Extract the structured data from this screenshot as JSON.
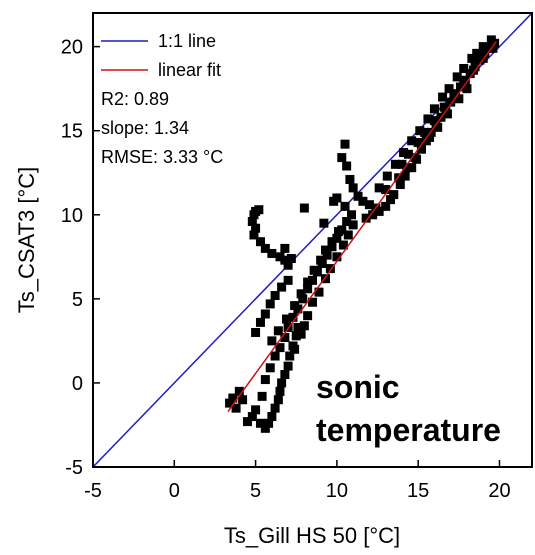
{
  "chart_data": {
    "type": "scatter",
    "xlabel": "Ts_Gill HS 50 [°C]",
    "ylabel": "Ts_CSAT3 [°C]",
    "xlim": [
      -5,
      22
    ],
    "ylim": [
      -5,
      22
    ],
    "xticks": [
      -5,
      0,
      5,
      10,
      15,
      20
    ],
    "yticks": [
      -5,
      0,
      5,
      10,
      15,
      20
    ],
    "legend_placement": "top-left",
    "legend": [
      {
        "label": "1:1 line",
        "color": "#1f1fbf"
      },
      {
        "label": "linear fit",
        "color": "#d01010"
      }
    ],
    "stats": [
      "R2: 0.89",
      "slope: 1.34",
      "RMSE: 3.33 °C"
    ],
    "annotation": [
      "sonic",
      "temperature"
    ],
    "lines": {
      "one_to_one": {
        "x": [
          -5,
          22
        ],
        "y": [
          -5,
          22
        ],
        "color": "#1f1fbf"
      },
      "linear_fit": {
        "x": [
          3.3,
          19.8
        ],
        "y": [
          -1.7,
          20.3
        ],
        "color": "#d01010"
      }
    },
    "marker_color": "#000000",
    "points": [
      [
        4.9,
        10.0
      ],
      [
        5.0,
        10.2
      ],
      [
        5.2,
        10.3
      ],
      [
        4.8,
        9.6
      ],
      [
        5.0,
        9.2
      ],
      [
        4.9,
        8.8
      ],
      [
        5.3,
        8.4
      ],
      [
        5.6,
        8.0
      ],
      [
        6.0,
        7.7
      ],
      [
        6.5,
        7.5
      ],
      [
        6.8,
        7.3
      ],
      [
        7.0,
        7.0
      ],
      [
        7.2,
        7.4
      ],
      [
        6.8,
        8.0
      ],
      [
        3.4,
        -1.2
      ],
      [
        3.6,
        -0.9
      ],
      [
        4.0,
        -0.5
      ],
      [
        3.8,
        -1.5
      ],
      [
        4.2,
        -1.0
      ],
      [
        4.5,
        -2.3
      ],
      [
        4.8,
        -2.0
      ],
      [
        5.0,
        -1.6
      ],
      [
        5.3,
        -2.4
      ],
      [
        5.6,
        -2.7
      ],
      [
        5.8,
        -2.4
      ],
      [
        6.0,
        -2.0
      ],
      [
        6.2,
        -1.5
      ],
      [
        6.4,
        -1.0
      ],
      [
        6.5,
        -0.5
      ],
      [
        6.6,
        0.0
      ],
      [
        6.8,
        0.5
      ],
      [
        7.0,
        1.0
      ],
      [
        7.1,
        1.6
      ],
      [
        7.3,
        2.2
      ],
      [
        7.5,
        2.8
      ],
      [
        7.6,
        3.3
      ],
      [
        5.4,
        -0.8
      ],
      [
        5.6,
        0.2
      ],
      [
        5.9,
        0.9
      ],
      [
        6.2,
        1.6
      ],
      [
        6.5,
        2.1
      ],
      [
        6.8,
        2.7
      ],
      [
        7.0,
        3.3
      ],
      [
        7.3,
        3.9
      ],
      [
        7.6,
        4.4
      ],
      [
        7.9,
        5.0
      ],
      [
        8.2,
        5.6
      ],
      [
        8.5,
        6.1
      ],
      [
        8.8,
        6.6
      ],
      [
        9.1,
        7.1
      ],
      [
        9.4,
        7.6
      ],
      [
        9.7,
        8.1
      ],
      [
        10.0,
        8.6
      ],
      [
        10.3,
        9.1
      ],
      [
        10.6,
        9.6
      ],
      [
        10.9,
        10.0
      ],
      [
        5.0,
        3.0
      ],
      [
        5.3,
        3.6
      ],
      [
        5.6,
        4.1
      ],
      [
        5.9,
        4.7
      ],
      [
        6.2,
        5.2
      ],
      [
        6.6,
        5.7
      ],
      [
        7.0,
        6.1
      ],
      [
        6.0,
        2.5
      ],
      [
        6.4,
        3.1
      ],
      [
        6.9,
        3.8
      ],
      [
        7.4,
        4.6
      ],
      [
        7.8,
        5.3
      ],
      [
        8.2,
        6.0
      ],
      [
        8.6,
        6.7
      ],
      [
        9.0,
        7.3
      ],
      [
        9.3,
        7.9
      ],
      [
        9.7,
        8.4
      ],
      [
        10.1,
        9.0
      ],
      [
        8.2,
        4.0
      ],
      [
        8.5,
        4.8
      ],
      [
        8.9,
        5.4
      ],
      [
        9.3,
        6.2
      ],
      [
        9.6,
        6.8
      ],
      [
        10.0,
        7.5
      ],
      [
        10.4,
        8.2
      ],
      [
        10.7,
        8.8
      ],
      [
        11.0,
        9.4
      ],
      [
        7.4,
        2.0
      ],
      [
        7.8,
        2.9
      ],
      [
        8.0,
        3.4
      ],
      [
        10.5,
        14.2
      ],
      [
        10.3,
        13.4
      ],
      [
        10.6,
        12.9
      ],
      [
        10.8,
        12.1
      ],
      [
        11.0,
        11.6
      ],
      [
        11.3,
        11.1
      ],
      [
        11.6,
        10.8
      ],
      [
        12.0,
        10.6
      ],
      [
        12.4,
        10.4
      ],
      [
        11.8,
        9.8
      ],
      [
        12.2,
        10.0
      ],
      [
        12.6,
        10.2
      ],
      [
        13.0,
        10.5
      ],
      [
        13.3,
        10.9
      ],
      [
        13.0,
        11.5
      ],
      [
        10.5,
        10.5
      ],
      [
        10.0,
        11.0
      ],
      [
        9.8,
        10.8
      ],
      [
        8.0,
        10.4
      ],
      [
        9.2,
        9.5
      ],
      [
        13.5,
        11.2
      ],
      [
        13.9,
        11.8
      ],
      [
        14.2,
        12.3
      ],
      [
        14.6,
        12.8
      ],
      [
        14.9,
        13.3
      ],
      [
        15.2,
        13.9
      ],
      [
        15.5,
        14.4
      ],
      [
        15.8,
        14.9
      ],
      [
        16.1,
        15.3
      ],
      [
        16.4,
        15.8
      ],
      [
        16.7,
        16.2
      ],
      [
        17.0,
        16.7
      ],
      [
        17.3,
        17.1
      ],
      [
        17.6,
        17.6
      ],
      [
        17.9,
        18.0
      ],
      [
        18.2,
        18.4
      ],
      [
        18.5,
        18.8
      ],
      [
        18.8,
        19.2
      ],
      [
        19.1,
        19.6
      ],
      [
        19.4,
        19.9
      ],
      [
        19.7,
        20.2
      ],
      [
        19.5,
        20.4
      ],
      [
        19.0,
        20.0
      ],
      [
        18.6,
        19.6
      ],
      [
        18.3,
        19.3
      ],
      [
        17.8,
        18.7
      ],
      [
        17.4,
        18.2
      ],
      [
        16.9,
        17.5
      ],
      [
        16.5,
        17.0
      ],
      [
        16.0,
        16.3
      ],
      [
        15.6,
        15.7
      ],
      [
        15.1,
        15.0
      ],
      [
        14.6,
        14.4
      ],
      [
        14.1,
        13.7
      ],
      [
        13.6,
        13.0
      ],
      [
        13.1,
        12.3
      ],
      [
        12.6,
        11.6
      ],
      [
        14.0,
        13.0
      ],
      [
        14.4,
        13.6
      ],
      [
        15.0,
        14.3
      ],
      [
        15.4,
        14.9
      ],
      [
        16.0,
        15.6
      ],
      [
        16.6,
        16.4
      ],
      [
        17.2,
        17.2
      ],
      [
        17.8,
        17.9
      ],
      [
        18.4,
        18.6
      ],
      [
        19.0,
        19.3
      ],
      [
        19.6,
        19.9
      ],
      [
        18.0,
        17.5
      ],
      [
        17.5,
        16.9
      ],
      [
        16.8,
        16.0
      ],
      [
        16.2,
        15.2
      ],
      [
        15.7,
        14.6
      ],
      [
        15.2,
        14.0
      ],
      [
        14.8,
        13.4
      ],
      [
        14.3,
        12.8
      ],
      [
        13.8,
        12.2
      ]
    ]
  }
}
